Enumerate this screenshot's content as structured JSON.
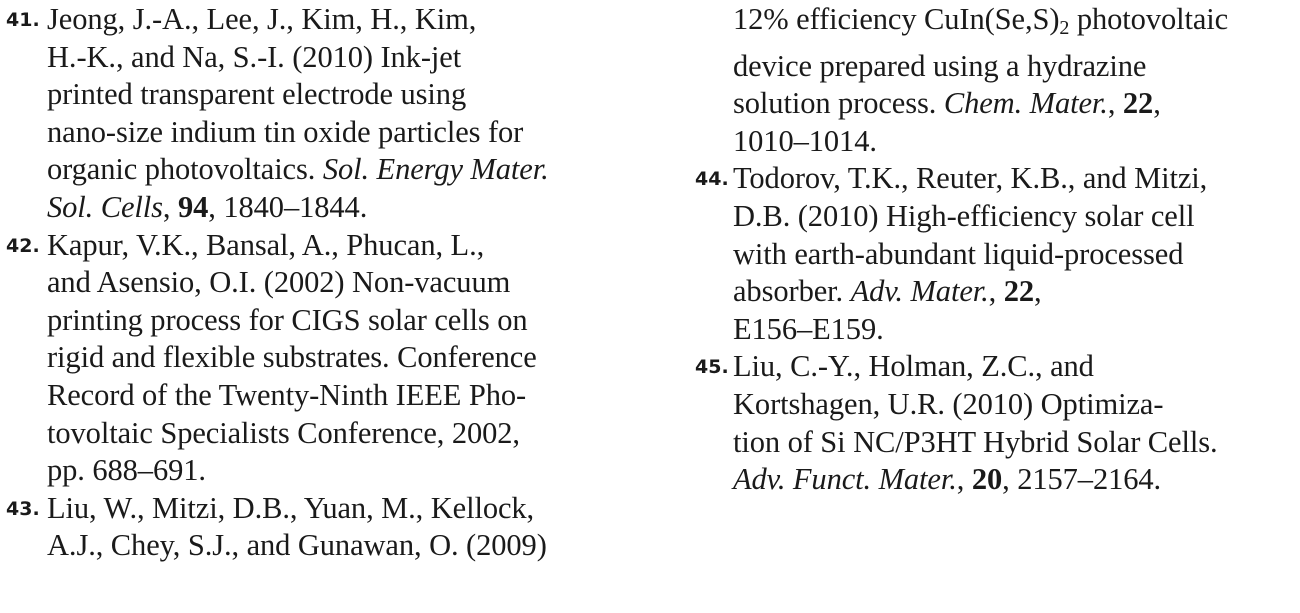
{
  "columns": [
    {
      "refs": [
        {
          "number": "41.",
          "lines": [
            [
              {
                "t": "Jeong, J.-A., Lee, J., Kim, H., Kim,"
              }
            ],
            [
              {
                "t": "H.-K., and Na, S.-I. (2010) Ink-jet"
              }
            ],
            [
              {
                "t": "printed transparent electrode using"
              }
            ],
            [
              {
                "t": "nano-size indium tin oxide particles for"
              }
            ],
            [
              {
                "t": "organic photovoltaics. "
              },
              {
                "t": "Sol. Energy Mater.",
                "s": "i"
              }
            ],
            [
              {
                "t": "Sol. Cells",
                "s": "i"
              },
              {
                "t": ", "
              },
              {
                "t": "94",
                "s": "b"
              },
              {
                "t": ", 1840–1844."
              }
            ]
          ]
        },
        {
          "number": "42.",
          "lines": [
            [
              {
                "t": "Kapur, V.K., Bansal, A., Phucan, L.,"
              }
            ],
            [
              {
                "t": "and Asensio, O.I. (2002) Non-vacuum"
              }
            ],
            [
              {
                "t": "printing process for CIGS solar cells on"
              }
            ],
            [
              {
                "t": "rigid and flexible substrates. Conference"
              }
            ],
            [
              {
                "t": "Record of the Twenty-Ninth IEEE Pho-"
              }
            ],
            [
              {
                "t": "tovoltaic Specialists Conference, 2002,"
              }
            ],
            [
              {
                "t": "pp. 688–691."
              }
            ]
          ]
        },
        {
          "number": "43.",
          "lines": [
            [
              {
                "t": "Liu, W., Mitzi, D.B., Yuan, M., Kellock,"
              }
            ],
            [
              {
                "t": "A.J., Chey, S.J., and Gunawan, O. (2009)"
              }
            ]
          ]
        }
      ]
    },
    {
      "refs": [
        {
          "number": "",
          "lines": [
            [
              {
                "t": "12% efficiency CuIn(Se,S)"
              },
              {
                "t": "2",
                "s": "sub"
              },
              {
                "t": " photovoltaic"
              }
            ],
            [
              {
                "t": "device prepared using a hydrazine"
              }
            ],
            [
              {
                "t": "solution process. "
              },
              {
                "t": "Chem. Mater.",
                "s": "i"
              },
              {
                "t": ", "
              },
              {
                "t": "22",
                "s": "b"
              },
              {
                "t": ","
              }
            ],
            [
              {
                "t": "1010–1014."
              }
            ]
          ]
        },
        {
          "number": "44.",
          "lines": [
            [
              {
                "t": "Todorov, T.K., Reuter, K.B., and Mitzi,"
              }
            ],
            [
              {
                "t": "D.B. (2010) High-efficiency solar cell"
              }
            ],
            [
              {
                "t": "with earth-abundant liquid-processed"
              }
            ],
            [
              {
                "t": "absorber. "
              },
              {
                "t": "Adv. Mater.",
                "s": "i"
              },
              {
                "t": ", "
              },
              {
                "t": "22",
                "s": "b"
              },
              {
                "t": ","
              }
            ],
            [
              {
                "t": "E156–E159."
              }
            ]
          ]
        },
        {
          "number": "45.",
          "lines": [
            [
              {
                "t": "Liu, C.-Y., Holman, Z.C., and"
              }
            ],
            [
              {
                "t": "Kortshagen, U.R. (2010) Optimiza-"
              }
            ],
            [
              {
                "t": "tion of Si NC/P3HT Hybrid Solar Cells."
              }
            ],
            [
              {
                "t": "Adv. Funct. Mater.",
                "s": "i"
              },
              {
                "t": ", "
              },
              {
                "t": "20",
                "s": "b"
              },
              {
                "t": ", 2157–2164."
              }
            ]
          ]
        }
      ]
    }
  ]
}
